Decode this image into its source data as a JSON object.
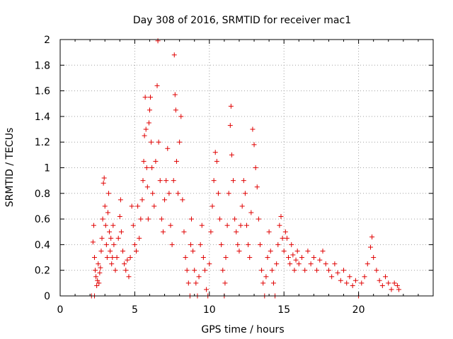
{
  "chart_data": {
    "type": "scatter",
    "title": "Day 308 of 2016, SRMTID for receiver mac1",
    "xlabel": "GPS time / hours",
    "ylabel": "SRMTID / TECUs",
    "xlim": [
      0,
      25
    ],
    "ylim": [
      0,
      2
    ],
    "x_ticks": [
      "0",
      "5",
      "10",
      "15",
      "20"
    ],
    "y_ticks": [
      "0",
      "0.2",
      "0.4",
      "0.6",
      "0.8",
      "1",
      "1.2",
      "1.4",
      "1.6",
      "1.8",
      "2"
    ],
    "grid": true,
    "marker": "+",
    "color": "#e00000",
    "series": [
      {
        "points": [
          [
            2.1,
            0.0
          ],
          [
            2.3,
            0.0
          ],
          [
            2.2,
            0.42
          ],
          [
            2.25,
            0.55
          ],
          [
            2.3,
            0.3
          ],
          [
            2.35,
            0.2
          ],
          [
            2.4,
            0.15
          ],
          [
            2.45,
            0.08
          ],
          [
            2.5,
            0.12
          ],
          [
            2.55,
            0.25
          ],
          [
            2.6,
            0.1
          ],
          [
            2.65,
            0.18
          ],
          [
            2.7,
            0.22
          ],
          [
            2.75,
            0.35
          ],
          [
            2.8,
            0.45
          ],
          [
            2.85,
            0.6
          ],
          [
            2.9,
            0.88
          ],
          [
            2.95,
            0.92
          ],
          [
            3.0,
            0.7
          ],
          [
            3.05,
            0.55
          ],
          [
            3.1,
            0.4
          ],
          [
            3.15,
            0.3
          ],
          [
            3.2,
            0.65
          ],
          [
            3.25,
            0.8
          ],
          [
            3.3,
            0.5
          ],
          [
            3.35,
            0.35
          ],
          [
            3.4,
            0.45
          ],
          [
            3.45,
            0.25
          ],
          [
            3.5,
            0.3
          ],
          [
            3.55,
            0.55
          ],
          [
            3.6,
            0.4
          ],
          [
            3.7,
            0.2
          ],
          [
            3.8,
            0.3
          ],
          [
            3.9,
            0.45
          ],
          [
            4.0,
            0.62
          ],
          [
            4.05,
            0.75
          ],
          [
            4.1,
            0.5
          ],
          [
            4.2,
            0.35
          ],
          [
            4.3,
            0.25
          ],
          [
            4.4,
            0.2
          ],
          [
            4.5,
            0.28
          ],
          [
            4.6,
            0.15
          ],
          [
            4.7,
            0.3
          ],
          [
            4.8,
            0.7
          ],
          [
            4.9,
            0.55
          ],
          [
            5.0,
            0.4
          ],
          [
            5.1,
            0.35
          ],
          [
            5.2,
            0.7
          ],
          [
            5.3,
            0.45
          ],
          [
            5.4,
            0.6
          ],
          [
            5.5,
            0.75
          ],
          [
            5.55,
            0.9
          ],
          [
            5.6,
            1.05
          ],
          [
            5.65,
            1.25
          ],
          [
            5.7,
            1.55
          ],
          [
            5.75,
            1.3
          ],
          [
            5.8,
            1.0
          ],
          [
            5.85,
            0.85
          ],
          [
            5.9,
            0.6
          ],
          [
            5.95,
            1.35
          ],
          [
            6.0,
            1.45
          ],
          [
            6.05,
            1.55
          ],
          [
            6.1,
            1.2
          ],
          [
            6.15,
            1.0
          ],
          [
            6.2,
            0.8
          ],
          [
            6.3,
            0.7
          ],
          [
            6.4,
            1.05
          ],
          [
            6.5,
            1.64
          ],
          [
            6.55,
            1.99
          ],
          [
            6.6,
            1.2
          ],
          [
            6.7,
            0.9
          ],
          [
            6.8,
            0.6
          ],
          [
            6.9,
            0.5
          ],
          [
            7.0,
            0.75
          ],
          [
            7.1,
            0.9
          ],
          [
            7.2,
            1.15
          ],
          [
            7.3,
            0.8
          ],
          [
            7.4,
            0.55
          ],
          [
            7.5,
            0.4
          ],
          [
            7.6,
            0.9
          ],
          [
            7.65,
            1.88
          ],
          [
            7.7,
            1.57
          ],
          [
            7.75,
            1.45
          ],
          [
            7.8,
            1.05
          ],
          [
            7.9,
            0.8
          ],
          [
            8.0,
            1.2
          ],
          [
            8.1,
            1.4
          ],
          [
            8.2,
            0.75
          ],
          [
            8.3,
            0.5
          ],
          [
            8.4,
            0.3
          ],
          [
            8.5,
            0.2
          ],
          [
            8.6,
            0.1
          ],
          [
            8.7,
            0.0
          ],
          [
            8.75,
            0.4
          ],
          [
            8.8,
            0.6
          ],
          [
            8.9,
            0.35
          ],
          [
            9.0,
            0.2
          ],
          [
            9.1,
            0.1
          ],
          [
            9.2,
            0.0
          ],
          [
            9.3,
            0.15
          ],
          [
            9.4,
            0.4
          ],
          [
            9.5,
            0.55
          ],
          [
            9.6,
            0.3
          ],
          [
            9.7,
            0.2
          ],
          [
            9.8,
            0.05
          ],
          [
            9.9,
            0.0
          ],
          [
            10.0,
            0.25
          ],
          [
            10.1,
            0.5
          ],
          [
            10.2,
            0.7
          ],
          [
            10.3,
            0.9
          ],
          [
            10.4,
            1.12
          ],
          [
            10.5,
            1.05
          ],
          [
            10.6,
            0.8
          ],
          [
            10.7,
            0.6
          ],
          [
            10.8,
            0.4
          ],
          [
            10.9,
            0.2
          ],
          [
            11.0,
            0.0
          ],
          [
            11.05,
            0.1
          ],
          [
            11.1,
            0.3
          ],
          [
            11.2,
            0.55
          ],
          [
            11.3,
            0.8
          ],
          [
            11.4,
            1.33
          ],
          [
            11.45,
            1.48
          ],
          [
            11.5,
            1.1
          ],
          [
            11.6,
            0.9
          ],
          [
            11.7,
            0.6
          ],
          [
            11.8,
            0.5
          ],
          [
            11.9,
            0.4
          ],
          [
            12.0,
            0.35
          ],
          [
            12.1,
            0.55
          ],
          [
            12.2,
            0.7
          ],
          [
            12.3,
            0.9
          ],
          [
            12.4,
            0.8
          ],
          [
            12.5,
            0.55
          ],
          [
            12.6,
            0.4
          ],
          [
            12.7,
            0.3
          ],
          [
            12.8,
            0.65
          ],
          [
            12.9,
            1.3
          ],
          [
            13.0,
            1.18
          ],
          [
            13.1,
            1.0
          ],
          [
            13.2,
            0.85
          ],
          [
            13.3,
            0.6
          ],
          [
            13.4,
            0.4
          ],
          [
            13.5,
            0.2
          ],
          [
            13.6,
            0.1
          ],
          [
            13.7,
            0.0
          ],
          [
            13.8,
            0.15
          ],
          [
            13.9,
            0.3
          ],
          [
            14.0,
            0.5
          ],
          [
            14.1,
            0.35
          ],
          [
            14.2,
            0.2
          ],
          [
            14.3,
            0.1
          ],
          [
            14.4,
            0.0
          ],
          [
            14.5,
            0.25
          ],
          [
            14.6,
            0.4
          ],
          [
            14.7,
            0.55
          ],
          [
            14.8,
            0.62
          ],
          [
            14.9,
            0.45
          ],
          [
            15.0,
            0.35
          ],
          [
            15.1,
            0.5
          ],
          [
            15.2,
            0.45
          ],
          [
            15.3,
            0.3
          ],
          [
            15.4,
            0.25
          ],
          [
            15.5,
            0.4
          ],
          [
            15.6,
            0.32
          ],
          [
            15.7,
            0.2
          ],
          [
            15.8,
            0.28
          ],
          [
            15.9,
            0.35
          ],
          [
            16.0,
            0.25
          ],
          [
            16.2,
            0.3
          ],
          [
            16.4,
            0.2
          ],
          [
            16.6,
            0.35
          ],
          [
            16.8,
            0.25
          ],
          [
            17.0,
            0.3
          ],
          [
            17.2,
            0.2
          ],
          [
            17.4,
            0.28
          ],
          [
            17.6,
            0.35
          ],
          [
            17.8,
            0.25
          ],
          [
            18.0,
            0.2
          ],
          [
            18.2,
            0.15
          ],
          [
            18.4,
            0.25
          ],
          [
            18.6,
            0.18
          ],
          [
            18.8,
            0.12
          ],
          [
            19.0,
            0.2
          ],
          [
            19.2,
            0.1
          ],
          [
            19.4,
            0.15
          ],
          [
            19.6,
            0.08
          ],
          [
            19.8,
            0.12
          ],
          [
            20.0,
            0.0
          ],
          [
            20.2,
            0.1
          ],
          [
            20.4,
            0.15
          ],
          [
            20.6,
            0.25
          ],
          [
            20.8,
            0.38
          ],
          [
            20.9,
            0.46
          ],
          [
            21.0,
            0.3
          ],
          [
            21.2,
            0.2
          ],
          [
            21.4,
            0.12
          ],
          [
            21.6,
            0.08
          ],
          [
            21.8,
            0.15
          ],
          [
            22.0,
            0.1
          ],
          [
            22.2,
            0.05
          ],
          [
            22.4,
            0.1
          ],
          [
            22.6,
            0.08
          ],
          [
            22.7,
            0.05
          ]
        ]
      }
    ]
  }
}
